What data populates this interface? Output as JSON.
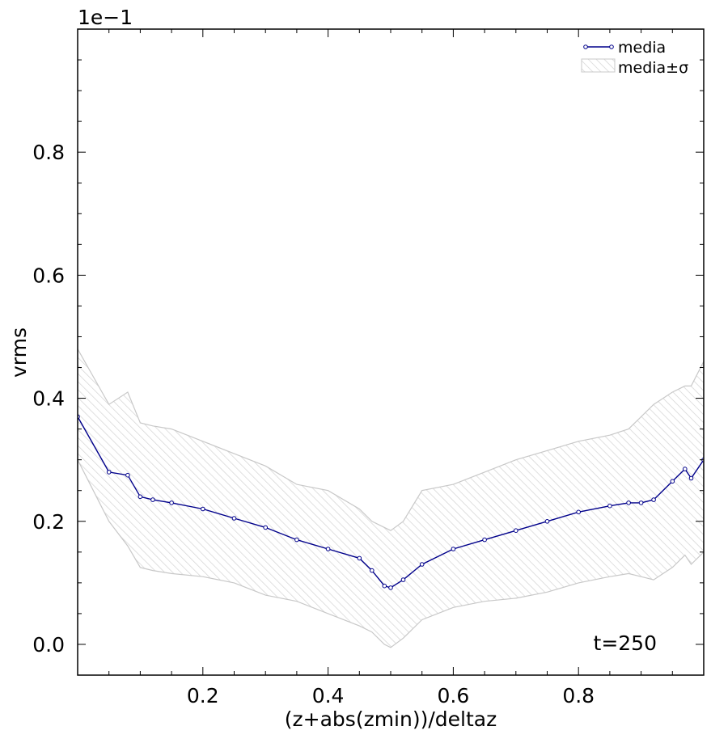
{
  "chart_data": {
    "type": "line",
    "title": "",
    "xlabel": "(z+abs(zmin))/deltaz",
    "ylabel": "vrms",
    "offset_text": "1e−1",
    "annotation": "t=250",
    "xlim": [
      0.0,
      1.0
    ],
    "ylim": [
      -0.05,
      1.0
    ],
    "grid": false,
    "legend_position": "top-right",
    "x_ticks": [
      0.2,
      0.4,
      0.6,
      0.8
    ],
    "x_tick_labels": [
      "0.2",
      "0.4",
      "0.6",
      "0.8"
    ],
    "y_ticks": [
      0.0,
      0.2,
      0.4,
      0.6,
      0.8
    ],
    "y_tick_labels": [
      "0.0",
      "0.2",
      "0.4",
      "0.6",
      "0.8"
    ],
    "legend": [
      "media",
      "media±σ"
    ],
    "colors": {
      "mean": "#00008b",
      "band_stroke": "#c8c8c8",
      "band_hatch": "#d2d2d2"
    },
    "series": [
      {
        "name": "media",
        "x": [
          0.0,
          0.05,
          0.08,
          0.1,
          0.12,
          0.15,
          0.2,
          0.25,
          0.3,
          0.35,
          0.4,
          0.45,
          0.47,
          0.49,
          0.5,
          0.52,
          0.55,
          0.6,
          0.65,
          0.7,
          0.75,
          0.8,
          0.85,
          0.88,
          0.9,
          0.92,
          0.95,
          0.97,
          0.98,
          1.0
        ],
        "y": [
          0.37,
          0.28,
          0.275,
          0.24,
          0.235,
          0.23,
          0.22,
          0.205,
          0.19,
          0.17,
          0.155,
          0.14,
          0.12,
          0.095,
          0.092,
          0.105,
          0.13,
          0.155,
          0.17,
          0.185,
          0.2,
          0.215,
          0.225,
          0.23,
          0.23,
          0.235,
          0.265,
          0.285,
          0.27,
          0.3
        ]
      },
      {
        "name": "media±σ",
        "x": [
          0.0,
          0.05,
          0.08,
          0.1,
          0.12,
          0.15,
          0.2,
          0.25,
          0.3,
          0.35,
          0.4,
          0.45,
          0.47,
          0.49,
          0.5,
          0.52,
          0.55,
          0.6,
          0.65,
          0.7,
          0.75,
          0.8,
          0.85,
          0.88,
          0.9,
          0.92,
          0.95,
          0.97,
          0.98,
          1.0
        ],
        "upper": [
          0.48,
          0.39,
          0.41,
          0.36,
          0.355,
          0.35,
          0.33,
          0.31,
          0.29,
          0.26,
          0.25,
          0.22,
          0.2,
          0.19,
          0.185,
          0.2,
          0.25,
          0.26,
          0.28,
          0.3,
          0.315,
          0.33,
          0.34,
          0.35,
          0.37,
          0.39,
          0.41,
          0.42,
          0.42,
          0.46
        ],
        "lower": [
          0.3,
          0.2,
          0.16,
          0.125,
          0.12,
          0.115,
          0.11,
          0.1,
          0.08,
          0.07,
          0.05,
          0.03,
          0.02,
          0.0,
          -0.005,
          0.01,
          0.04,
          0.06,
          0.07,
          0.075,
          0.085,
          0.1,
          0.11,
          0.115,
          0.11,
          0.105,
          0.125,
          0.145,
          0.13,
          0.15
        ]
      }
    ]
  }
}
